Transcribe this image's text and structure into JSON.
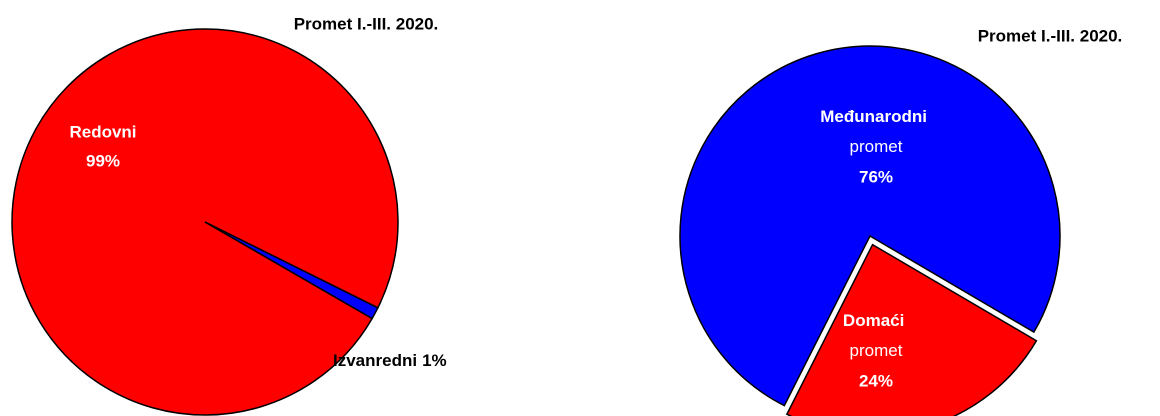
{
  "chart_data": [
    {
      "type": "pie",
      "title": "Promet I.-III. 2020.",
      "categories": [
        "Redovni",
        "Izvanredni"
      ],
      "values": [
        99,
        1
      ],
      "value_labels": [
        "99%",
        "1%"
      ],
      "colors": [
        "#ff0000",
        "#0000ff"
      ]
    },
    {
      "type": "pie",
      "title": "Promet I.-III. 2020.",
      "categories": [
        "Međunarodni promet",
        "Domaći promet"
      ],
      "values": [
        76,
        24
      ],
      "value_labels": [
        "76%",
        "24%"
      ],
      "colors": [
        "#0000ff",
        "#ff0000"
      ]
    }
  ]
}
